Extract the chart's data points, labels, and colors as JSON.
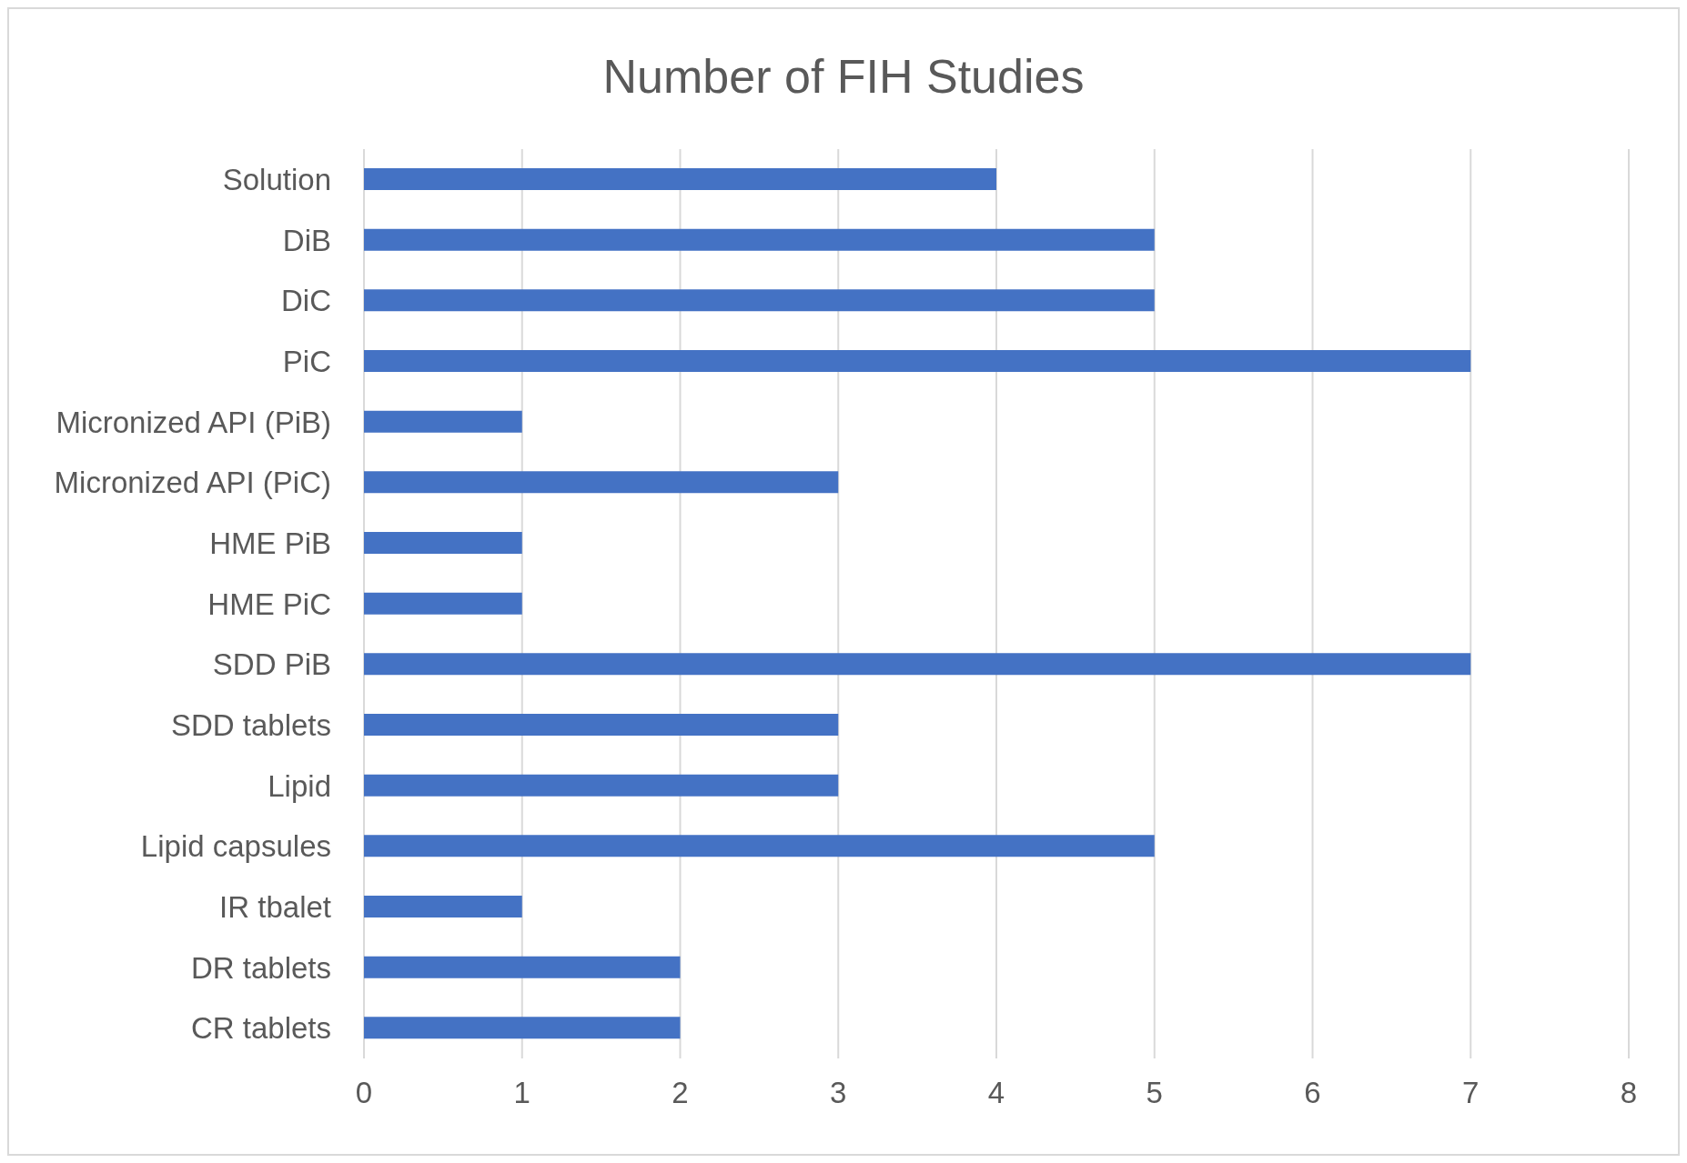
{
  "chart_data": {
    "type": "bar",
    "orientation": "horizontal",
    "title": "Number of FIH Studies",
    "categories": [
      "Solution",
      "DiB",
      "DiC",
      "PiC",
      "Micronized API (PiB)",
      "Micronized API (PiC)",
      "HME PiB",
      "HME PiC",
      "SDD PiB",
      "SDD tablets",
      "Lipid",
      "Lipid capsules",
      "IR tbalet",
      "DR tablets",
      "CR tablets"
    ],
    "values": [
      4,
      5,
      5,
      7,
      1,
      3,
      1,
      1,
      7,
      3,
      3,
      5,
      1,
      2,
      2
    ],
    "color": "#4472c4",
    "xlim": [
      0,
      8
    ],
    "xticks": [
      0,
      1,
      2,
      3,
      4,
      5,
      6,
      7,
      8
    ],
    "grid": "x",
    "legend": false
  }
}
